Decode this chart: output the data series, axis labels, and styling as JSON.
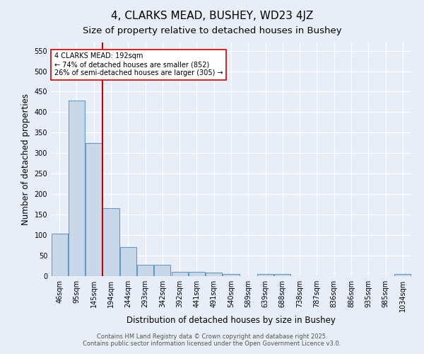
{
  "title": "4, CLARKS MEAD, BUSHEY, WD23 4JZ",
  "subtitle": "Size of property relative to detached houses in Bushey",
  "xlabel": "Distribution of detached houses by size in Bushey",
  "ylabel": "Number of detached properties",
  "footer_line1": "Contains HM Land Registry data © Crown copyright and database right 2025.",
  "footer_line2": "Contains public sector information licensed under the Open Government Licence v3.0.",
  "categories": [
    "46sqm",
    "95sqm",
    "145sqm",
    "194sqm",
    "244sqm",
    "293sqm",
    "342sqm",
    "392sqm",
    "441sqm",
    "491sqm",
    "540sqm",
    "589sqm",
    "639sqm",
    "688sqm",
    "738sqm",
    "787sqm",
    "836sqm",
    "886sqm",
    "935sqm",
    "985sqm",
    "1034sqm"
  ],
  "values": [
    103,
    428,
    325,
    165,
    70,
    27,
    27,
    11,
    11,
    8,
    5,
    0,
    6,
    6,
    0,
    0,
    0,
    0,
    0,
    0,
    5
  ],
  "bar_color": "#c8d8e8",
  "bar_edge_color": "#6699bb",
  "bar_linewidth": 0.8,
  "background_color": "#e8eef8",
  "grid_color": "#ffffff",
  "property_line_x": 2.5,
  "line_color": "#cc0000",
  "annotation_line1": "4 CLARKS MEAD: 192sqm",
  "annotation_line2": "← 74% of detached houses are smaller (852)",
  "annotation_line3": "26% of semi-detached houses are larger (305) →",
  "annotation_box_color": "#ffffff",
  "annotation_box_edge": "#cc0000",
  "ylim": [
    0,
    570
  ],
  "yticks": [
    0,
    50,
    100,
    150,
    200,
    250,
    300,
    350,
    400,
    450,
    500,
    550
  ],
  "title_fontsize": 11,
  "subtitle_fontsize": 9.5,
  "tick_fontsize": 7,
  "axis_label_fontsize": 8.5,
  "annotation_fontsize": 7
}
